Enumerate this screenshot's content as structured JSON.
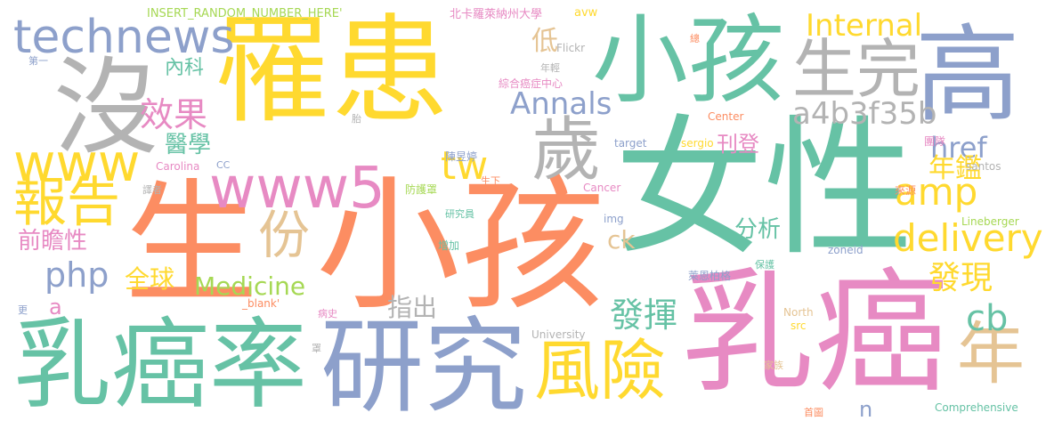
{
  "palette": {
    "green": "#66c2a5",
    "orange": "#fc8d62",
    "blue": "#8da0cb",
    "pink": "#e78ac3",
    "lime": "#a6d854",
    "yellow": "#ffd92f",
    "tan": "#e5c494",
    "gray": "#b3b3b3"
  },
  "words": [
    {
      "text": "罹患",
      "color": "yellow"
    },
    {
      "text": "小孩",
      "color": "green"
    },
    {
      "text": "女性",
      "color": "green"
    },
    {
      "text": "生",
      "color": "orange"
    },
    {
      "text": "小孩",
      "color": "orange"
    },
    {
      "text": "沒",
      "color": "gray"
    },
    {
      "text": "高",
      "color": "blue"
    },
    {
      "text": "乳癌",
      "color": "pink"
    },
    {
      "text": "乳癌率",
      "color": "green"
    },
    {
      "text": "研究",
      "color": "blue"
    },
    {
      "text": "technews",
      "color": "blue"
    },
    {
      "text": "生完",
      "color": "gray"
    },
    {
      "text": "www5",
      "color": "pink"
    },
    {
      "text": "www",
      "color": "yellow"
    },
    {
      "text": "歲",
      "color": "gray"
    },
    {
      "text": "報告",
      "color": "yellow"
    },
    {
      "text": "風險",
      "color": "yellow"
    },
    {
      "text": "年",
      "color": "tan"
    },
    {
      "text": "份",
      "color": "tan"
    },
    {
      "text": "delivery",
      "color": "yellow"
    },
    {
      "text": "amp",
      "color": "yellow"
    },
    {
      "text": "tw",
      "color": "yellow"
    },
    {
      "text": "a4b3f35b",
      "color": "gray"
    },
    {
      "text": "Internal",
      "color": "yellow"
    },
    {
      "text": "效果",
      "color": "pink"
    },
    {
      "text": "Annals",
      "color": "blue"
    },
    {
      "text": "php",
      "color": "blue"
    },
    {
      "text": "cb",
      "color": "green"
    },
    {
      "text": "發揮",
      "color": "green"
    },
    {
      "text": "發現",
      "color": "yellow"
    },
    {
      "text": "Medicine",
      "color": "lime"
    },
    {
      "text": "href",
      "color": "blue"
    },
    {
      "text": "年鑑",
      "color": "yellow"
    },
    {
      "text": "醫學",
      "color": "green"
    },
    {
      "text": "前瞻性",
      "color": "pink"
    },
    {
      "text": "全球",
      "color": "yellow"
    },
    {
      "text": "分析",
      "color": "green"
    },
    {
      "text": "指出",
      "color": "gray"
    },
    {
      "text": "ck",
      "color": "tan"
    },
    {
      "text": "低",
      "color": "tan"
    },
    {
      "text": "內科",
      "color": "green"
    },
    {
      "text": "刊登",
      "color": "pink"
    },
    {
      "text": "a",
      "color": "pink"
    },
    {
      "text": "n",
      "color": "blue"
    },
    {
      "text": "INSERT_RANDOM_NUMBER_HERE'",
      "color": "lime"
    },
    {
      "text": "北卡羅萊納州大學",
      "color": "pink"
    },
    {
      "text": "avw",
      "color": "yellow"
    },
    {
      "text": "Flickr",
      "color": "gray"
    },
    {
      "text": "年輕",
      "color": "gray"
    },
    {
      "text": "綜合癌症中心",
      "color": "pink"
    },
    {
      "text": "Cancer",
      "color": "pink"
    },
    {
      "text": "Center",
      "color": "orange"
    },
    {
      "text": "target",
      "color": "blue"
    },
    {
      "text": "sergio",
      "color": "yellow"
    },
    {
      "text": "santos",
      "color": "gray"
    },
    {
      "text": "團隊",
      "color": "pink"
    },
    {
      "text": "陳昱婷",
      "color": "blue"
    },
    {
      "text": "防護罩",
      "color": "lime"
    },
    {
      "text": "生下",
      "color": "orange"
    },
    {
      "text": "研究員",
      "color": "green"
    },
    {
      "text": "增加",
      "color": "green"
    },
    {
      "text": "img",
      "color": "blue"
    },
    {
      "text": "來源",
      "color": "orange"
    },
    {
      "text": "Lineberger",
      "color": "lime"
    },
    {
      "text": "zoneid",
      "color": "blue"
    },
    {
      "text": "保護",
      "color": "green"
    },
    {
      "text": "萊恩柏格",
      "color": "blue"
    },
    {
      "text": "Carolina",
      "color": "pink"
    },
    {
      "text": "CC",
      "color": "blue"
    },
    {
      "text": "譯者",
      "color": "gray"
    },
    {
      "text": "_blank'",
      "color": "orange"
    },
    {
      "text": "病史",
      "color": "pink"
    },
    {
      "text": "University",
      "color": "gray"
    },
    {
      "text": "North",
      "color": "tan"
    },
    {
      "text": "src",
      "color": "yellow"
    },
    {
      "text": "家族",
      "color": "tan"
    },
    {
      "text": "首圖",
      "color": "orange"
    },
    {
      "text": "Comprehensive",
      "color": "green"
    },
    {
      "text": "罩",
      "color": "gray"
    },
    {
      "text": "胎",
      "color": "gray"
    },
    {
      "text": "總",
      "color": "orange"
    },
    {
      "text": "第一",
      "color": "blue"
    },
    {
      "text": "更",
      "color": "blue"
    }
  ]
}
